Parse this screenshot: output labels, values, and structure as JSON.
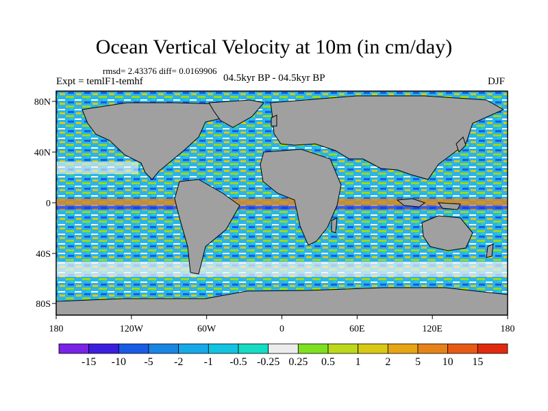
{
  "title": "Ocean Vertical Velocity at 10m (in cm/day)",
  "stats": "rmsd= 2.43376 diff= 0.0169906",
  "expt": "Expt = temlF1-temhf",
  "period": "04.5kyr BP - 04.5kyr BP",
  "season": "DJF",
  "lat_labels": [
    "80N",
    "40N",
    "0",
    "40S",
    "80S"
  ],
  "lon_labels": [
    "180",
    "120W",
    "60W",
    "0",
    "60E",
    "120E",
    "180"
  ],
  "colorbar": {
    "labels": [
      "-15",
      "-10",
      "-5",
      "-2",
      "-1",
      "-0.5",
      "-0.25",
      "0.25",
      "0.5",
      "1",
      "2",
      "5",
      "10",
      "15"
    ],
    "colors": [
      "#7a22e6",
      "#3c1ee0",
      "#1a5be6",
      "#1986e3",
      "#16a9e8",
      "#12c4e0",
      "#14dcc5",
      "#ececec",
      "#7fe020",
      "#bcd81a",
      "#d9c814",
      "#e6a514",
      "#e6821a",
      "#e85a14",
      "#e02a0f"
    ]
  },
  "colors": {
    "land": "#a0a0a0",
    "coast": "#000000"
  }
}
